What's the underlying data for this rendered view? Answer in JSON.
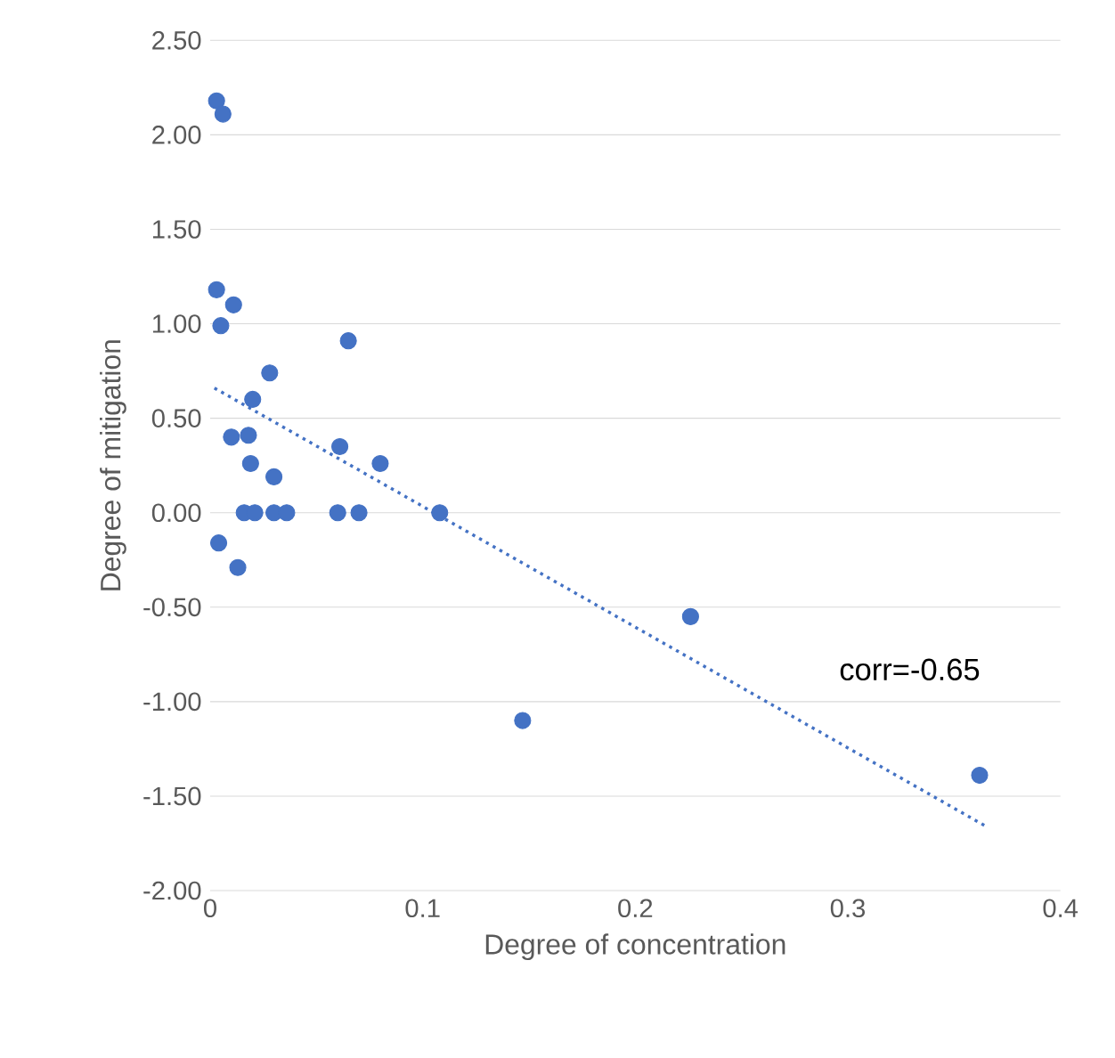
{
  "chart_data": {
    "type": "scatter",
    "xlabel": "Degree of concentration",
    "ylabel": "Degree of  mitigation",
    "xlim": [
      0,
      0.4
    ],
    "xticks": [
      0,
      0.1,
      0.2,
      0.3,
      0.4
    ],
    "ylim": [
      -2,
      2.5
    ],
    "yticks": [
      {
        "value": -2,
        "label": "-2.00"
      },
      {
        "value": -1.5,
        "label": "-1.50"
      },
      {
        "value": -1,
        "label": "-1.00"
      },
      {
        "value": -0.5,
        "label": "-0.50"
      },
      {
        "value": 0,
        "label": "0.00"
      },
      {
        "value": 0.5,
        "label": "0.50"
      },
      {
        "value": 1,
        "label": "1.00"
      },
      {
        "value": 1.5,
        "label": "1.50"
      },
      {
        "value": 2,
        "label": "2.00"
      },
      {
        "value": 2.5,
        "label": "2.50"
      }
    ],
    "grid": "y",
    "marker": "circle",
    "series": [
      {
        "color": "#4472c4",
        "x": [
          0.003,
          0.006,
          0.003,
          0.005,
          0.011,
          0.028,
          0.065,
          0.01,
          0.018,
          0.02,
          0.019,
          0.03,
          0.061,
          0.08,
          0.004,
          0.013,
          0.016,
          0.021,
          0.03,
          0.036,
          0.06,
          0.07,
          0.108,
          0.226,
          0.147,
          0.362
        ],
        "values": [
          2.18,
          2.11,
          1.18,
          0.99,
          1.1,
          0.74,
          0.91,
          0.4,
          0.41,
          0.6,
          0.26,
          0.19,
          0.35,
          0.26,
          -0.16,
          -0.29,
          0,
          0,
          0,
          0,
          0,
          0,
          0,
          -0.55,
          -1.1,
          -1.39
        ]
      },
      {
        "type": "line",
        "marker": "none",
        "color": "#4472c4",
        "line_style": "dotted",
        "x": [
          0.002,
          0.365
        ],
        "values": [
          0.66,
          -1.66
        ]
      }
    ],
    "annotations": [
      "corr=-0.65"
    ]
  }
}
